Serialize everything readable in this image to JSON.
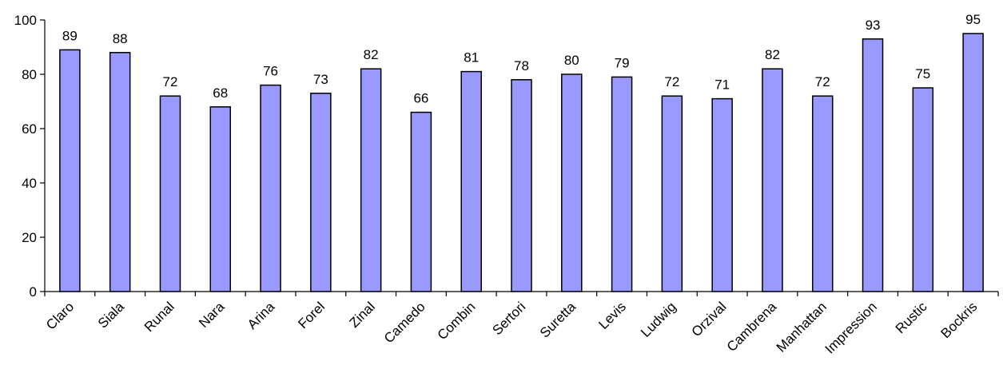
{
  "chart_data": {
    "type": "bar",
    "title": "",
    "xlabel": "",
    "ylabel": "",
    "ylim": [
      0,
      100
    ],
    "yticks": [
      0,
      20,
      40,
      60,
      80,
      100
    ],
    "grid": false,
    "legend": "none",
    "categories": [
      "Claro",
      "Siala",
      "Runal",
      "Nara",
      "Arina",
      "Forel",
      "Zinal",
      "Camedo",
      "Combin",
      "Sertori",
      "Suretta",
      "Levis",
      "Ludwig",
      "Orzival",
      "Cambrena",
      "Manhattan",
      "Impression",
      "Rustic",
      "Bockris"
    ],
    "values": [
      89,
      88,
      72,
      68,
      76,
      73,
      82,
      66,
      81,
      78,
      80,
      79,
      72,
      71,
      82,
      72,
      93,
      75,
      95
    ],
    "data_labels": [
      "89",
      "88",
      "72",
      "68",
      "76",
      "73",
      "82",
      "66",
      "81",
      "78",
      "80",
      "79",
      "72",
      "71",
      "82",
      "72",
      "93",
      "75",
      "95"
    ],
    "colors": {
      "bar_fill": "#9999ff",
      "bar_stroke": "#000000",
      "axis": "#000000"
    }
  }
}
